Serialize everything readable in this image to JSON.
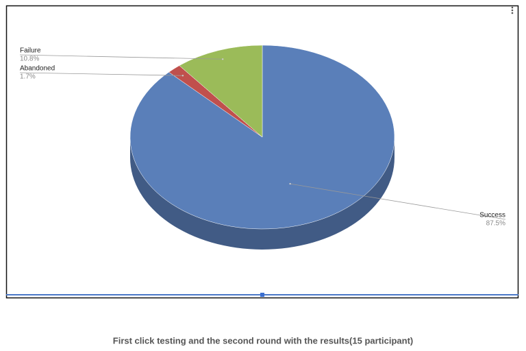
{
  "chart_data": {
    "type": "pie",
    "categories": [
      "Success",
      "Abandoned",
      "Failure"
    ],
    "values": [
      87.5,
      1.7,
      10.8
    ],
    "value_labels": [
      "87.5%",
      "1.7%",
      "10.8%"
    ],
    "colors": [
      "#5a7fb9",
      "#c0504d",
      "#9bbb59"
    ]
  },
  "caption": "First click testing and the second round with the results(15 participant)"
}
